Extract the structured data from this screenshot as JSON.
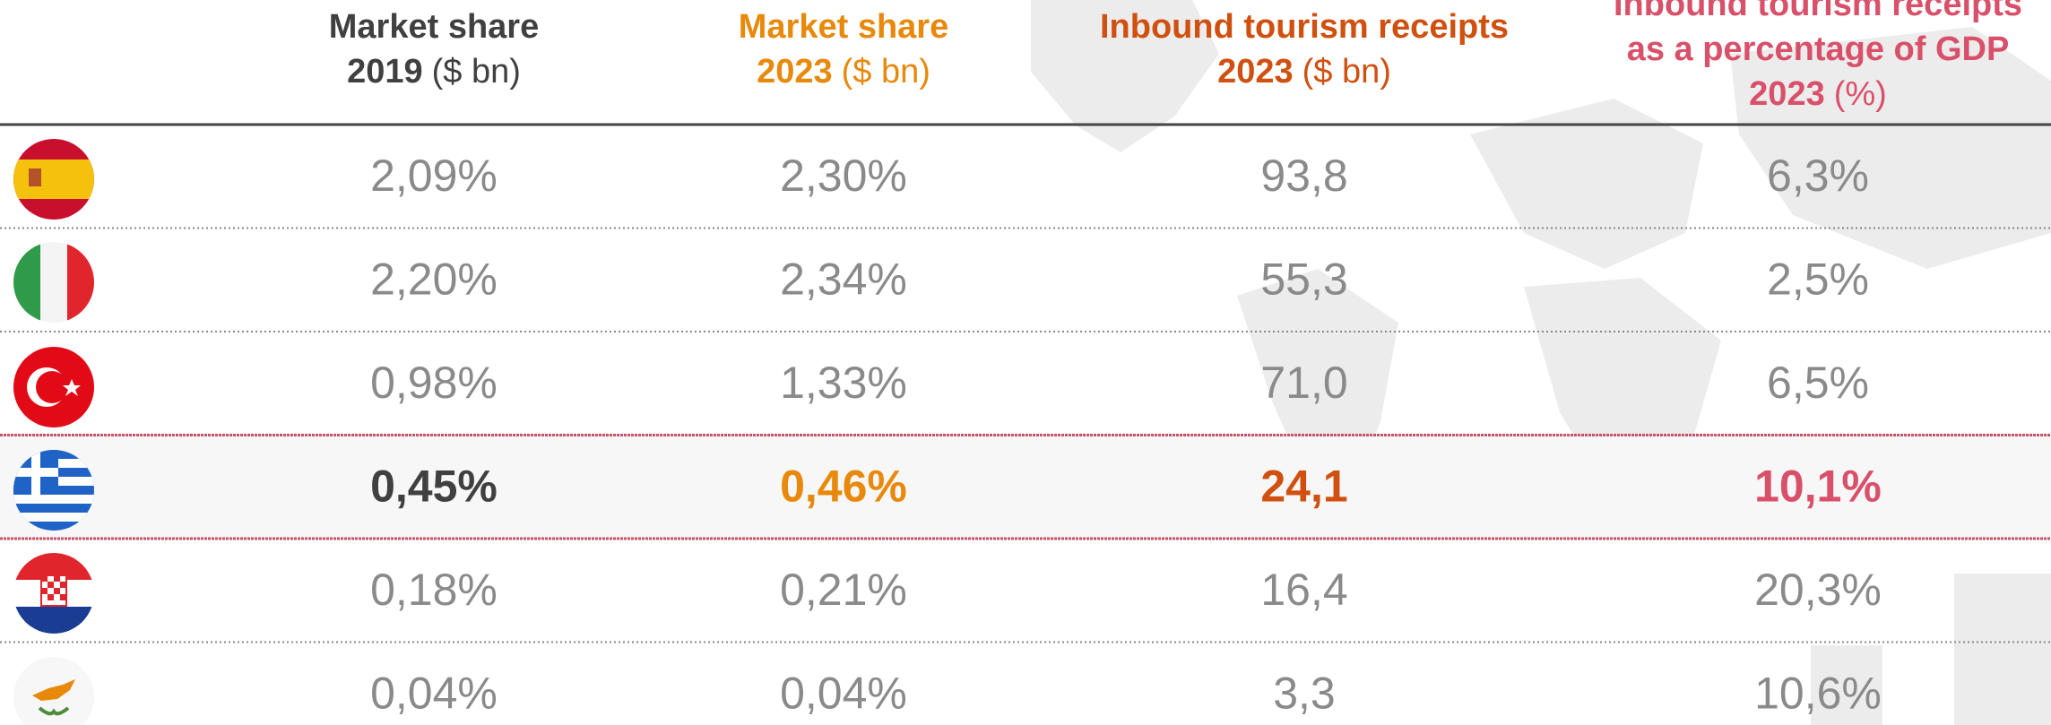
{
  "table": {
    "columns": [
      {
        "title_lines": [
          "Market share"
        ],
        "year": "2019",
        "unit": "($ bn)",
        "color": "#404040"
      },
      {
        "title_lines": [
          "Market share"
        ],
        "year": "2023",
        "unit": "($ bn)",
        "color": "#e8890c"
      },
      {
        "title_lines": [
          "Inbound tourism receipts"
        ],
        "year": "2023",
        "unit": "($ bn)",
        "color": "#d0500f"
      },
      {
        "title_lines": [
          "Inbound tourism receipts",
          "as a percentage of GDP"
        ],
        "year": "2023",
        "unit": "(%)",
        "color": "#d9506a"
      }
    ],
    "rows": [
      [
        "2,09%",
        "2,30%",
        "93,8",
        "6,3%"
      ],
      [
        "2,20%",
        "2,34%",
        "55,3",
        "2,5%"
      ],
      [
        "0,98%",
        "1,33%",
        "71,0",
        "6,5%"
      ],
      [
        "0,45%",
        "0,46%",
        "24,1",
        "10,1%"
      ],
      [
        "0,18%",
        "0,21%",
        "16,4",
        "20,3%"
      ],
      [
        "0,04%",
        "0,04%",
        "3,3",
        "10,6%"
      ]
    ],
    "highlighted_row": 3
  }
}
